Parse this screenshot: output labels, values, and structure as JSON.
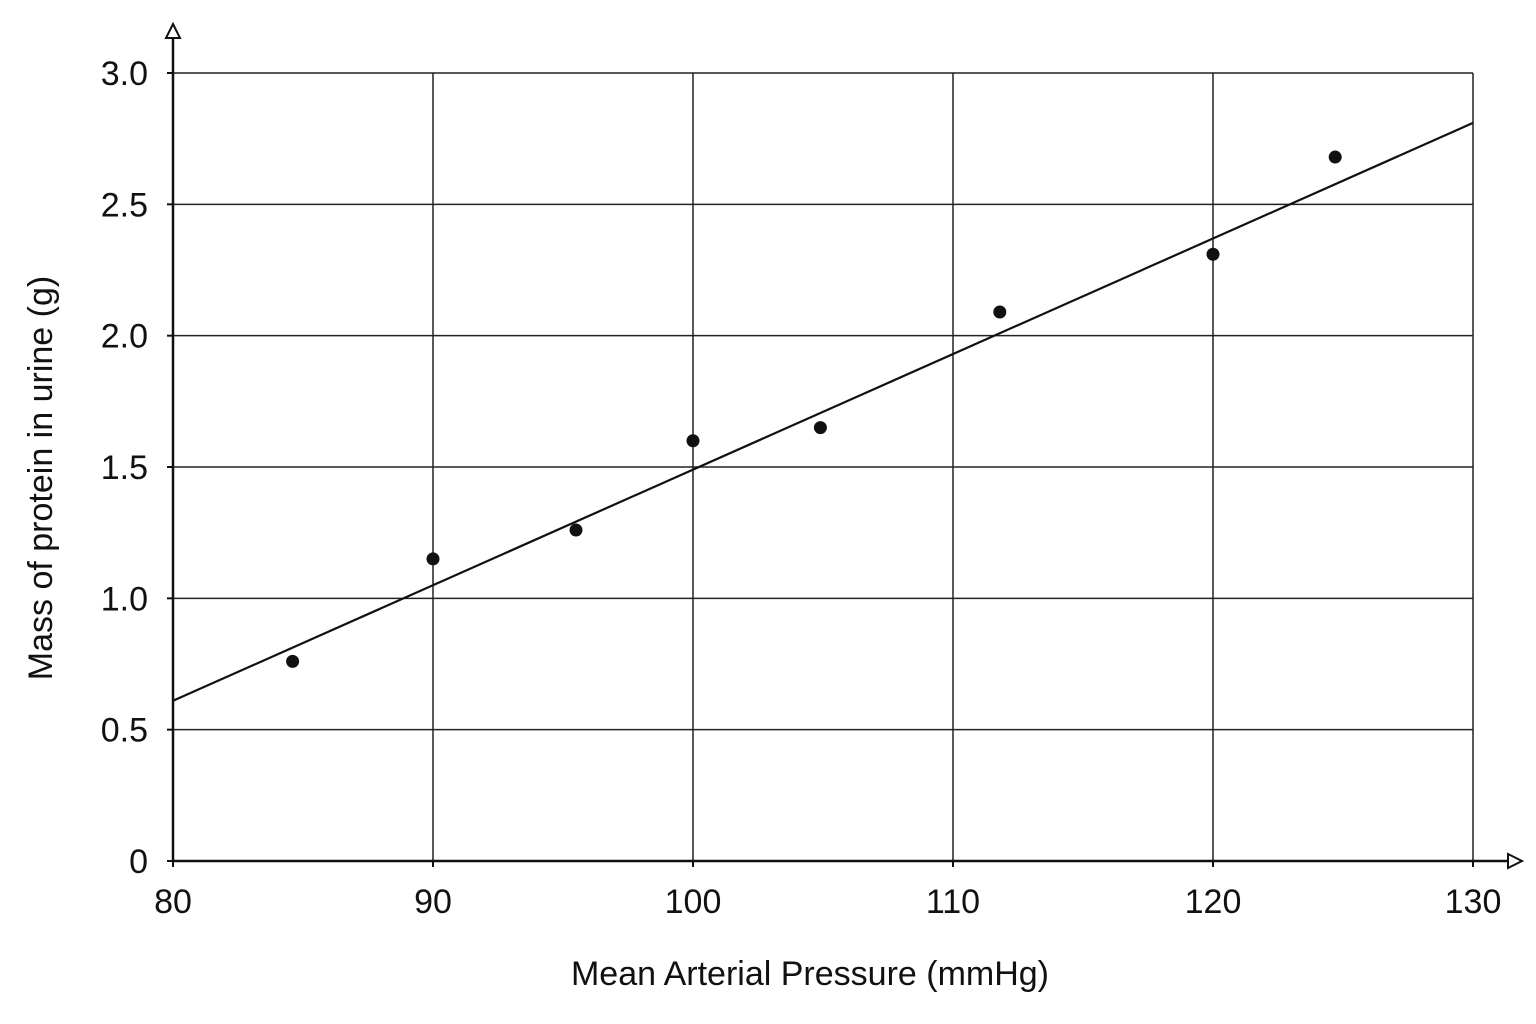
{
  "chart_data": {
    "type": "scatter",
    "xlabel": "Mean Arterial Pressure (mmHg)",
    "ylabel": "Mass of protein in urine (g)",
    "xlim": [
      80,
      130
    ],
    "ylim": [
      0,
      3.0
    ],
    "x_ticks": [
      "80",
      "90",
      "100",
      "110",
      "120",
      "130"
    ],
    "y_ticks": [
      "0",
      "0.5",
      "1.0",
      "1.5",
      "2.0",
      "2.5",
      "3.0"
    ],
    "grid": true,
    "series": [
      {
        "points": [
          {
            "x": 84.6,
            "y": 0.76
          },
          {
            "x": 90.0,
            "y": 1.15
          },
          {
            "x": 95.5,
            "y": 1.26
          },
          {
            "x": 100.0,
            "y": 1.6
          },
          {
            "x": 104.9,
            "y": 1.65
          },
          {
            "x": 111.8,
            "y": 2.09
          },
          {
            "x": 120.0,
            "y": 2.31
          },
          {
            "x": 124.7,
            "y": 2.68
          }
        ]
      }
    ],
    "trendline": {
      "x": [
        80,
        130
      ],
      "y": [
        0.61,
        2.81
      ]
    },
    "colors": {
      "axis": "#111111",
      "grid": "#222222",
      "point": "#111111",
      "line": "#111111"
    }
  }
}
